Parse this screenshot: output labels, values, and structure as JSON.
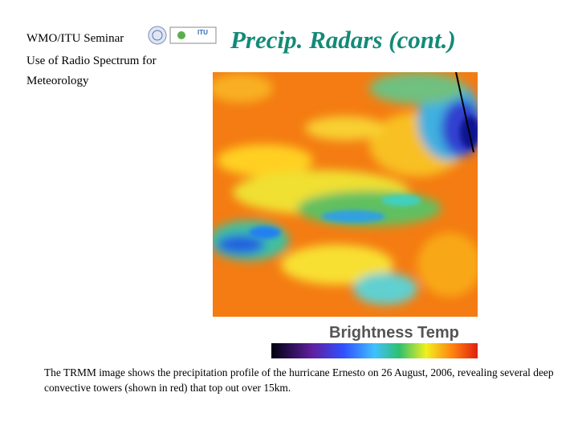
{
  "header": {
    "seminar": "WMO/ITU Seminar",
    "subtitle": "Use of Radio Spectrum for Meteorology",
    "logo_text": "ITU"
  },
  "title": "Precip. Radars (cont.)",
  "image": {
    "label": "Brightness Temp"
  },
  "caption": "The TRMM image shows the precipitation profile of the hurricane Ernesto on 26 August, 2006, revealing several deep convective towers (shown in red) that top out over 15km."
}
